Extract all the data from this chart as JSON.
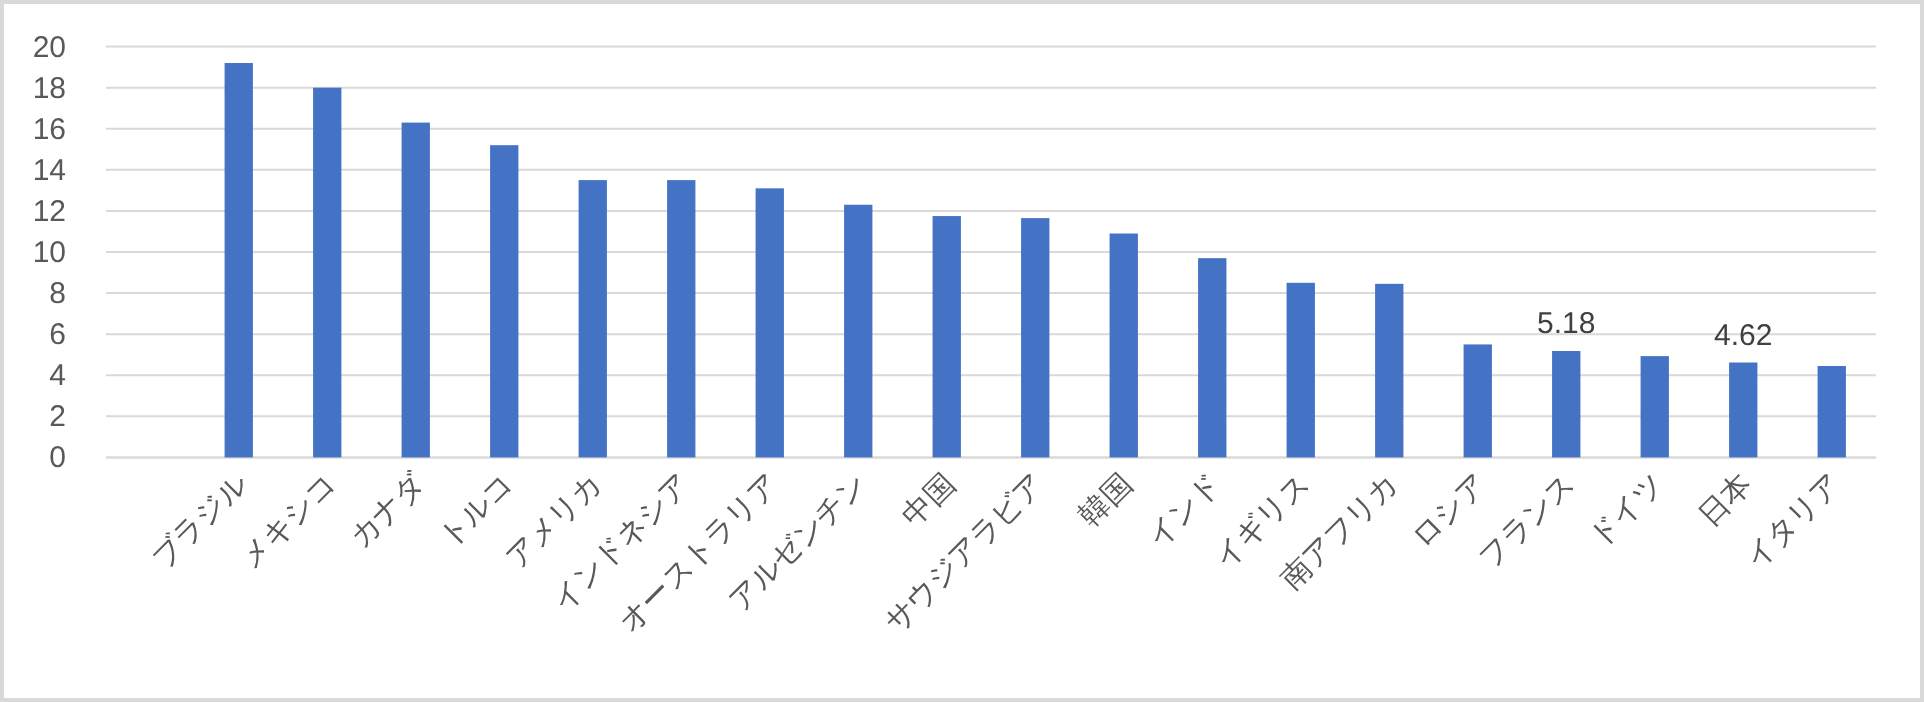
{
  "chart_data": {
    "type": "bar",
    "categories": [
      null,
      "ブラジル",
      "メキシコ",
      "カナダ",
      "トルコ",
      "アメリカ",
      "インドネシア",
      "オーストラリア",
      "アルゼンチン",
      "中国",
      "サウジアラビア",
      "韓国",
      "インド",
      "イギリス",
      "南アフリカ",
      "ロシア",
      "フランス",
      "ドイツ",
      "日本",
      "イタリア"
    ],
    "values": [
      null,
      19.2,
      18.0,
      16.3,
      15.2,
      13.5,
      13.5,
      13.1,
      12.3,
      11.75,
      11.65,
      10.9,
      9.7,
      8.5,
      8.45,
      5.5,
      5.18,
      4.93,
      4.62,
      4.45
    ],
    "value_labels": [
      null,
      null,
      null,
      null,
      null,
      null,
      null,
      null,
      null,
      null,
      null,
      null,
      null,
      null,
      null,
      null,
      "5.18",
      null,
      "4.62",
      null
    ],
    "color": "#4472c4",
    "ylim": [
      0,
      20
    ],
    "yticks": [
      0,
      2,
      4,
      6,
      8,
      10,
      12,
      14,
      16,
      18,
      20
    ],
    "grid": "y"
  }
}
